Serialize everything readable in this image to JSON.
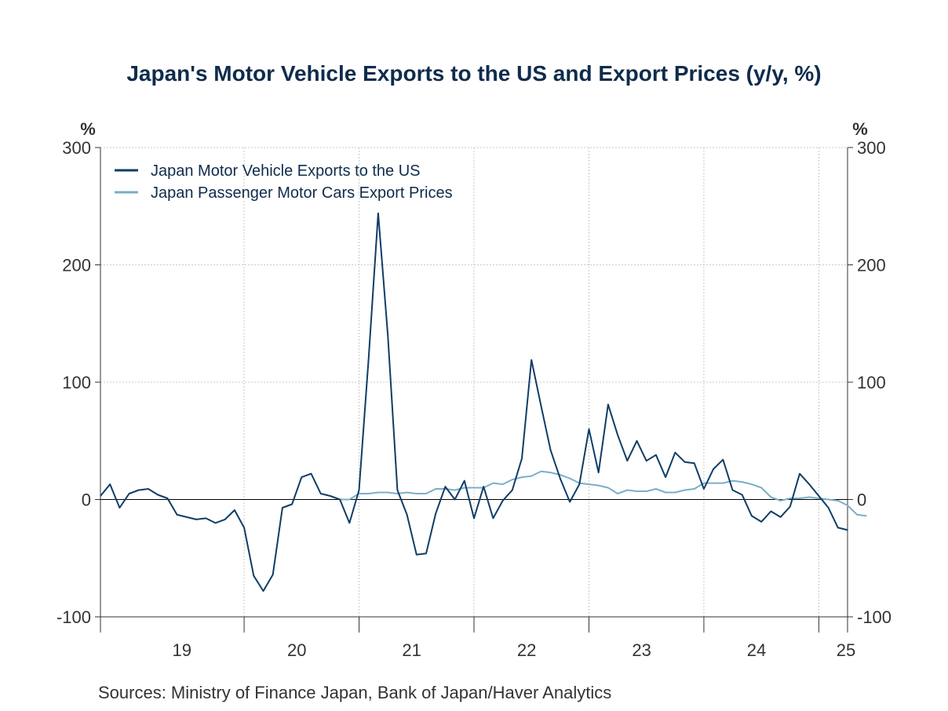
{
  "chart_data": {
    "type": "line",
    "title": "Japan's Motor Vehicle Exports to the US and Export Prices (y/y, %)",
    "source": "Sources:  Ministry of Finance Japan, Bank of Japan/Haver Analytics",
    "y_unit_left": "%",
    "y_unit_right": "%",
    "ylim": [
      -100,
      300
    ],
    "yticks": [
      -100,
      0,
      100,
      200,
      300
    ],
    "ytick_labels": [
      "-100",
      "0",
      "100",
      "200",
      "300"
    ],
    "x_start": "2018-10",
    "x_tick_labels": [
      "19",
      "20",
      "21",
      "22",
      "23",
      "24",
      "25"
    ],
    "grid": true,
    "legend_position": "top-left",
    "colors": {
      "exports": "#0f3d66",
      "prices": "#7aafc8",
      "zero_line": "#000000",
      "grid": "#c8c8c8",
      "axis": "#333333"
    },
    "series": [
      {
        "name": "Japan Motor Vehicle Exports to the US",
        "key": "exports",
        "values": [
          3,
          13,
          -7,
          5,
          8,
          9,
          4,
          1,
          -13,
          -15,
          -17,
          -16,
          -20,
          -17,
          -9,
          -24,
          -65,
          -78,
          -64,
          -7,
          -4,
          19,
          22,
          5,
          3,
          0,
          -20,
          8,
          120,
          244,
          140,
          8,
          -13,
          -47,
          -46,
          -12,
          11,
          0,
          16,
          -16,
          11,
          -16,
          -1,
          8,
          35,
          119,
          80,
          42,
          18,
          -2,
          13,
          60,
          23,
          81,
          55,
          33,
          50,
          33,
          38,
          19,
          40,
          32,
          31,
          9,
          26,
          34,
          8,
          4,
          -14,
          -19,
          -10,
          -15,
          -6,
          22,
          13,
          3,
          -7,
          -24,
          -26
        ]
      },
      {
        "name": "Japan Passenger Motor Cars Export Prices",
        "key": "prices",
        "start_index": 25,
        "values": [
          0,
          0,
          5,
          5,
          6,
          6,
          5,
          6,
          5,
          5,
          9,
          9,
          8,
          10,
          10,
          10,
          14,
          13,
          17,
          19,
          20,
          24,
          23,
          21,
          18,
          14,
          13,
          12,
          10,
          5,
          8,
          7,
          7,
          9,
          6,
          6,
          8,
          9,
          14,
          14,
          14,
          16,
          15,
          13,
          10,
          2,
          -1,
          1,
          1,
          2,
          1,
          0,
          -1,
          -5,
          -13,
          -14
        ]
      }
    ]
  }
}
